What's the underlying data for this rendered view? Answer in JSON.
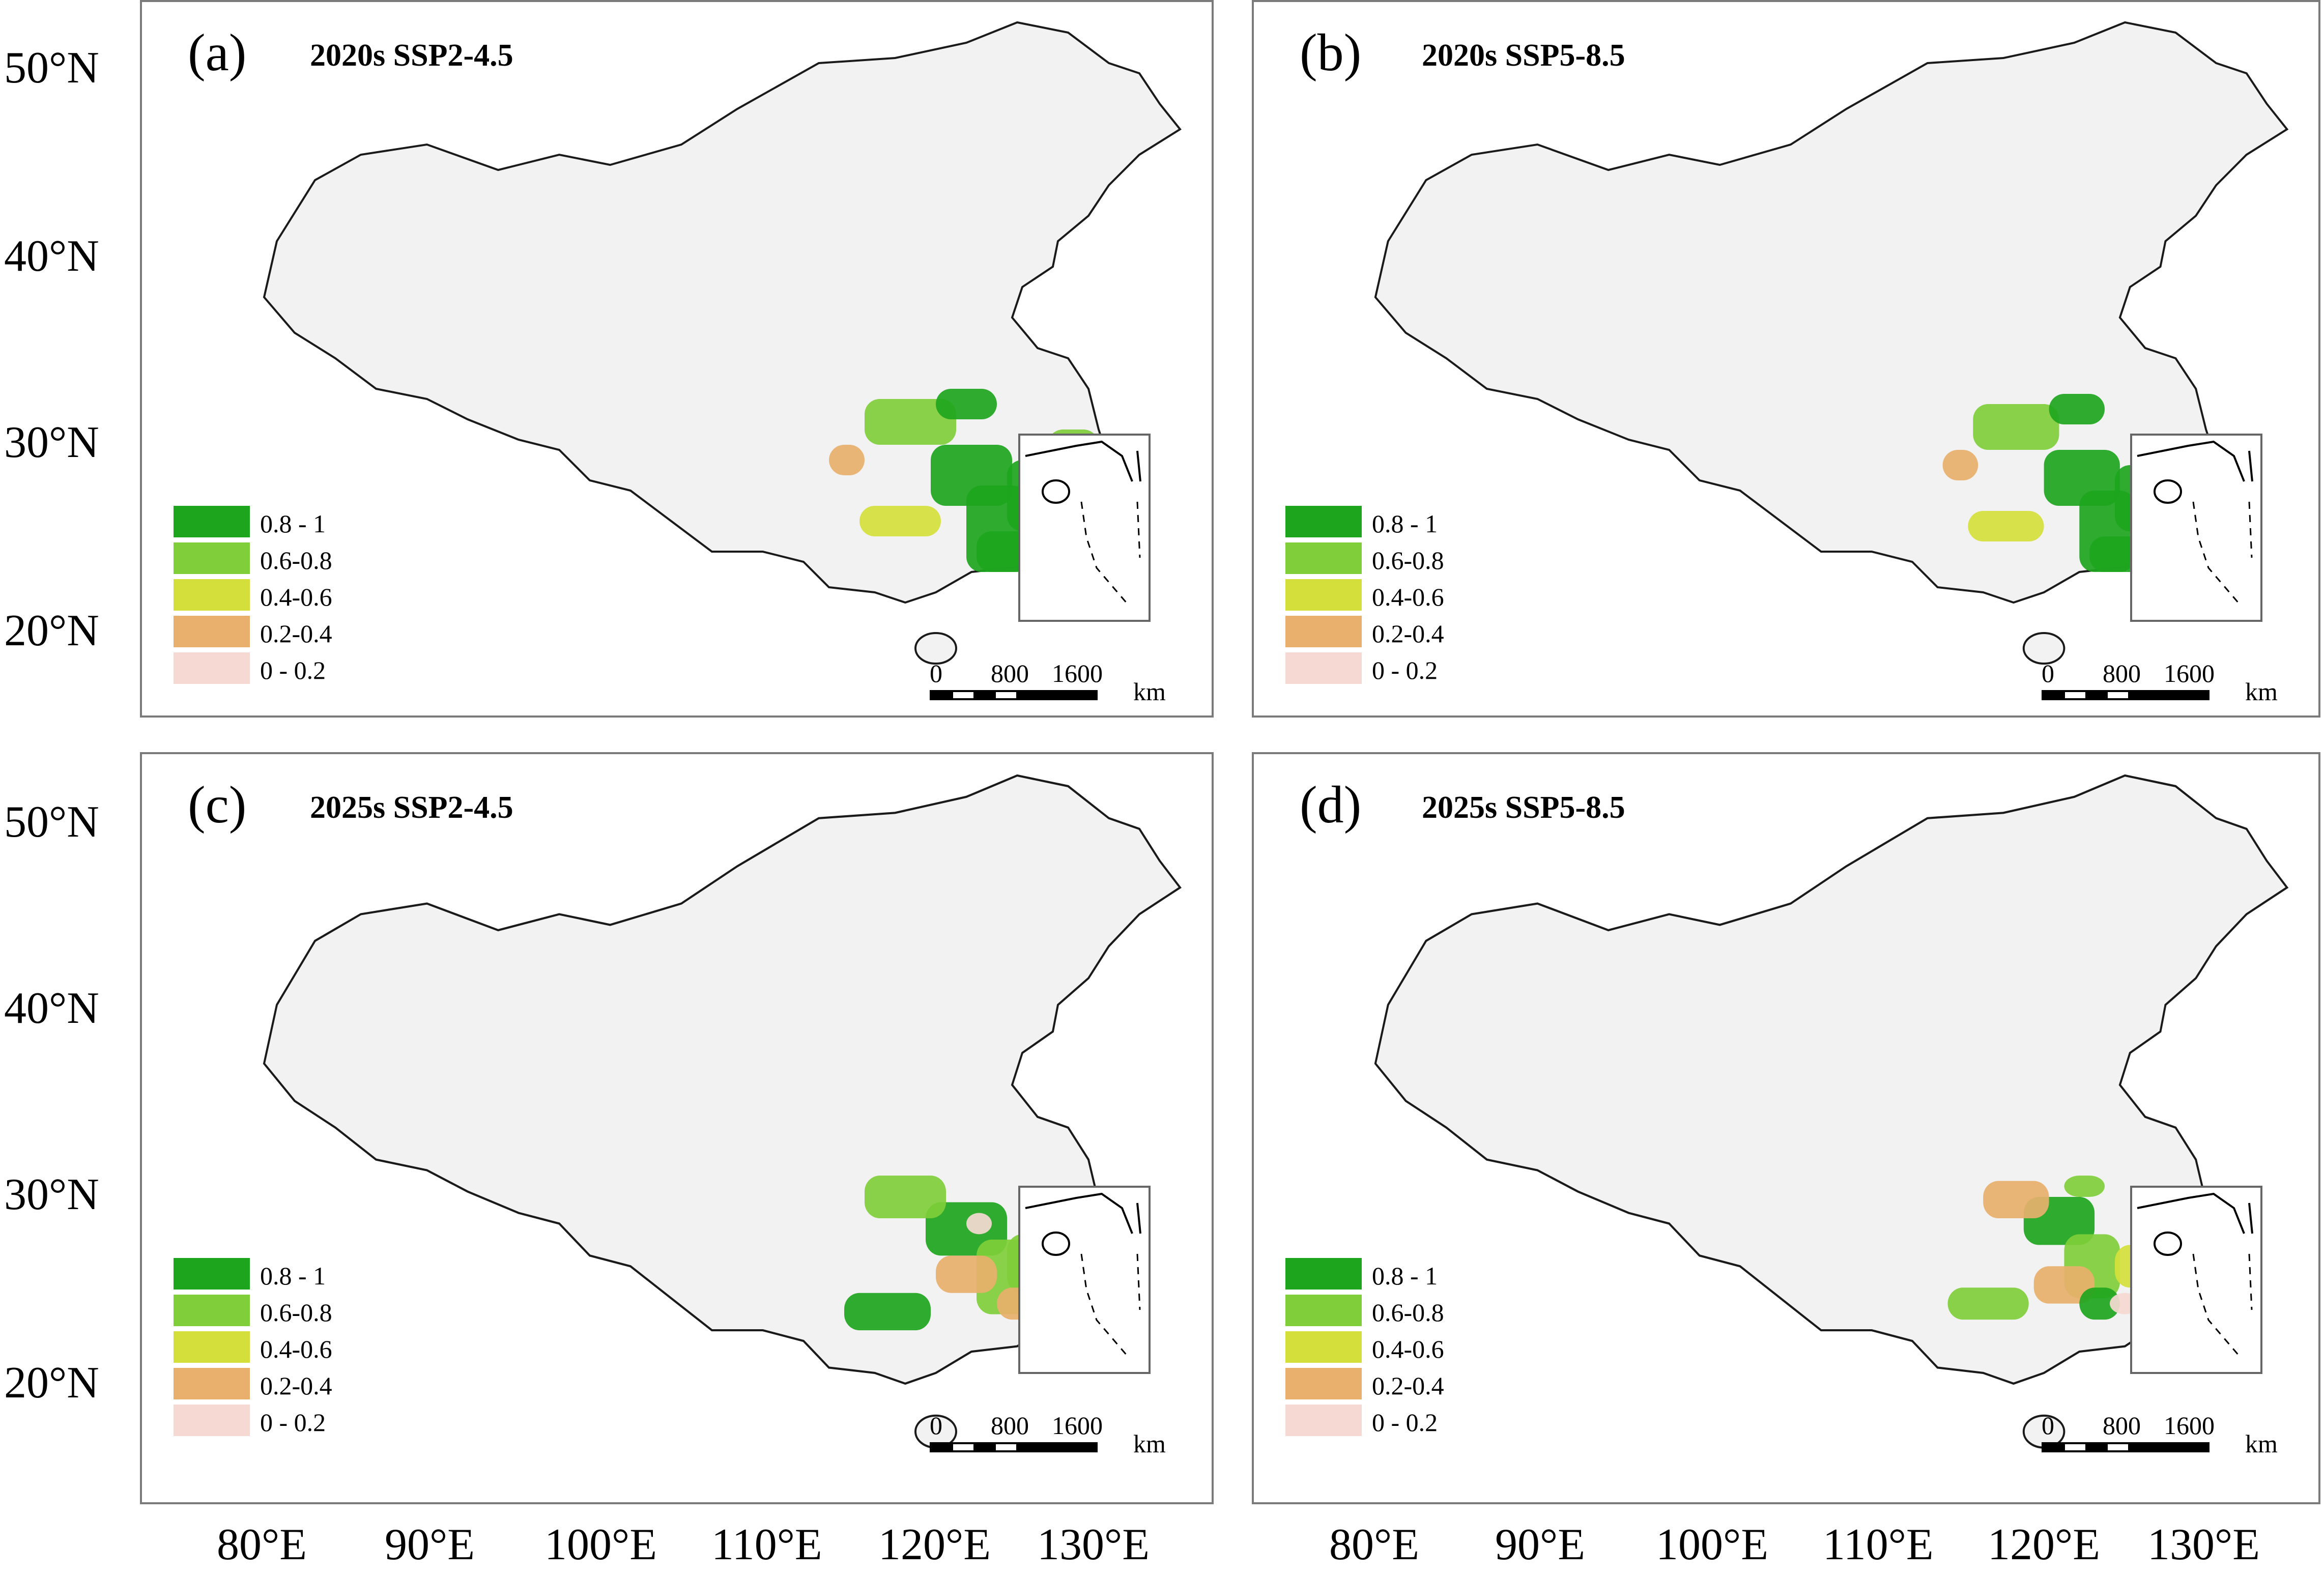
{
  "figure": {
    "lat_labels": [
      "50°N",
      "40°N",
      "30°N",
      "20°N"
    ],
    "lon_labels": [
      "80°E",
      "90°E",
      "100°E",
      "110°E",
      "120°E",
      "130°E"
    ],
    "legend": [
      {
        "label": "0.8 - 1",
        "color": "#1ea51e"
      },
      {
        "label": "0.6-0.8",
        "color": "#7fce3a"
      },
      {
        "label": "0.4-0.6",
        "color": "#d5df3c"
      },
      {
        "label": "0.2-0.4",
        "color": "#e8b06c"
      },
      {
        "label": "0 - 0.2",
        "color": "#f6d9d2"
      }
    ],
    "scale_bar": {
      "ticks": [
        "0",
        "800",
        "1600"
      ],
      "unit": "km"
    },
    "colors": {
      "land": "#f2f2f2",
      "outline": "#1a1a1a",
      "frame": "#7a7a7a"
    },
    "panels": [
      {
        "letter": "(a)",
        "title": "2020s SSP2-4.5"
      },
      {
        "letter": "(b)",
        "title": "2020s SSP5-8.5"
      },
      {
        "letter": "(c)",
        "title": "2025s SSP2-4.5"
      },
      {
        "letter": "(d)",
        "title": "2025s SSP5-8.5"
      }
    ]
  }
}
